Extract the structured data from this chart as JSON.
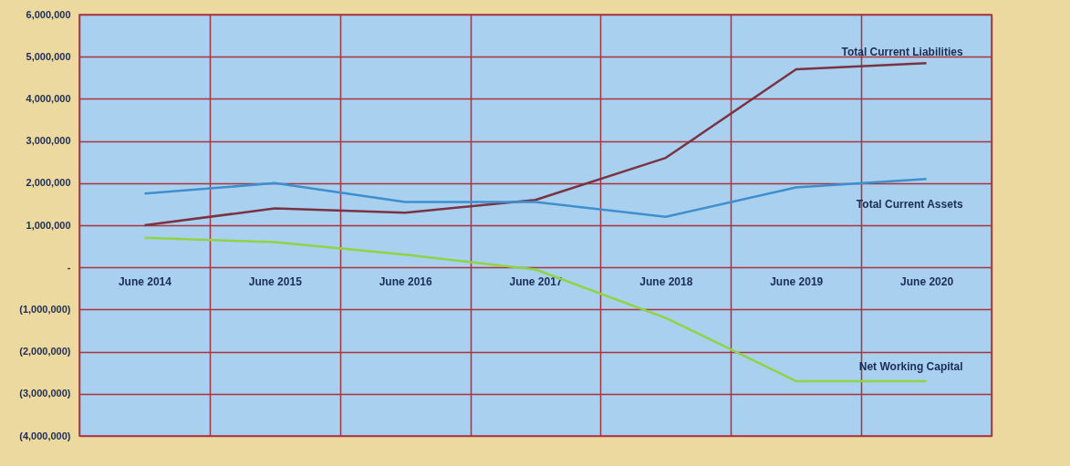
{
  "chart_data": {
    "type": "line",
    "categories": [
      "June 2014",
      "June 2015",
      "June 2016",
      "June 2017",
      "June 2018",
      "June 2019",
      "June 2020"
    ],
    "series": [
      {
        "name": "Total Current Liabilities",
        "color": "#7a3344",
        "values": [
          1000000,
          1400000,
          1300000,
          1600000,
          2600000,
          4700000,
          4850000
        ]
      },
      {
        "name": "Total Current Assets",
        "color": "#3f8fcf",
        "values": [
          1750000,
          2000000,
          1550000,
          1550000,
          1200000,
          1900000,
          2100000
        ]
      },
      {
        "name": "Net Working Capital",
        "color": "#8fd444",
        "values": [
          700000,
          600000,
          300000,
          -50000,
          -1200000,
          -2700000,
          -2700000
        ]
      }
    ],
    "ylim": [
      -4000000,
      6000000
    ],
    "yticks": [
      {
        "value": -4000000,
        "label": "(4,000,000)"
      },
      {
        "value": -3000000,
        "label": "(3,000,000)"
      },
      {
        "value": -2000000,
        "label": "(2,000,000)"
      },
      {
        "value": -1000000,
        "label": "(1,000,000)"
      },
      {
        "value": 0,
        "label": "-"
      },
      {
        "value": 1000000,
        "label": "1,000,000"
      },
      {
        "value": 2000000,
        "label": "2,000,000"
      },
      {
        "value": 3000000,
        "label": "3,000,000"
      },
      {
        "value": 4000000,
        "label": "4,000,000"
      },
      {
        "value": 5000000,
        "label": "5,000,000"
      },
      {
        "value": 6000000,
        "label": "6,000,000"
      }
    ],
    "grid": true,
    "marker": "none",
    "line_style": "solid"
  }
}
